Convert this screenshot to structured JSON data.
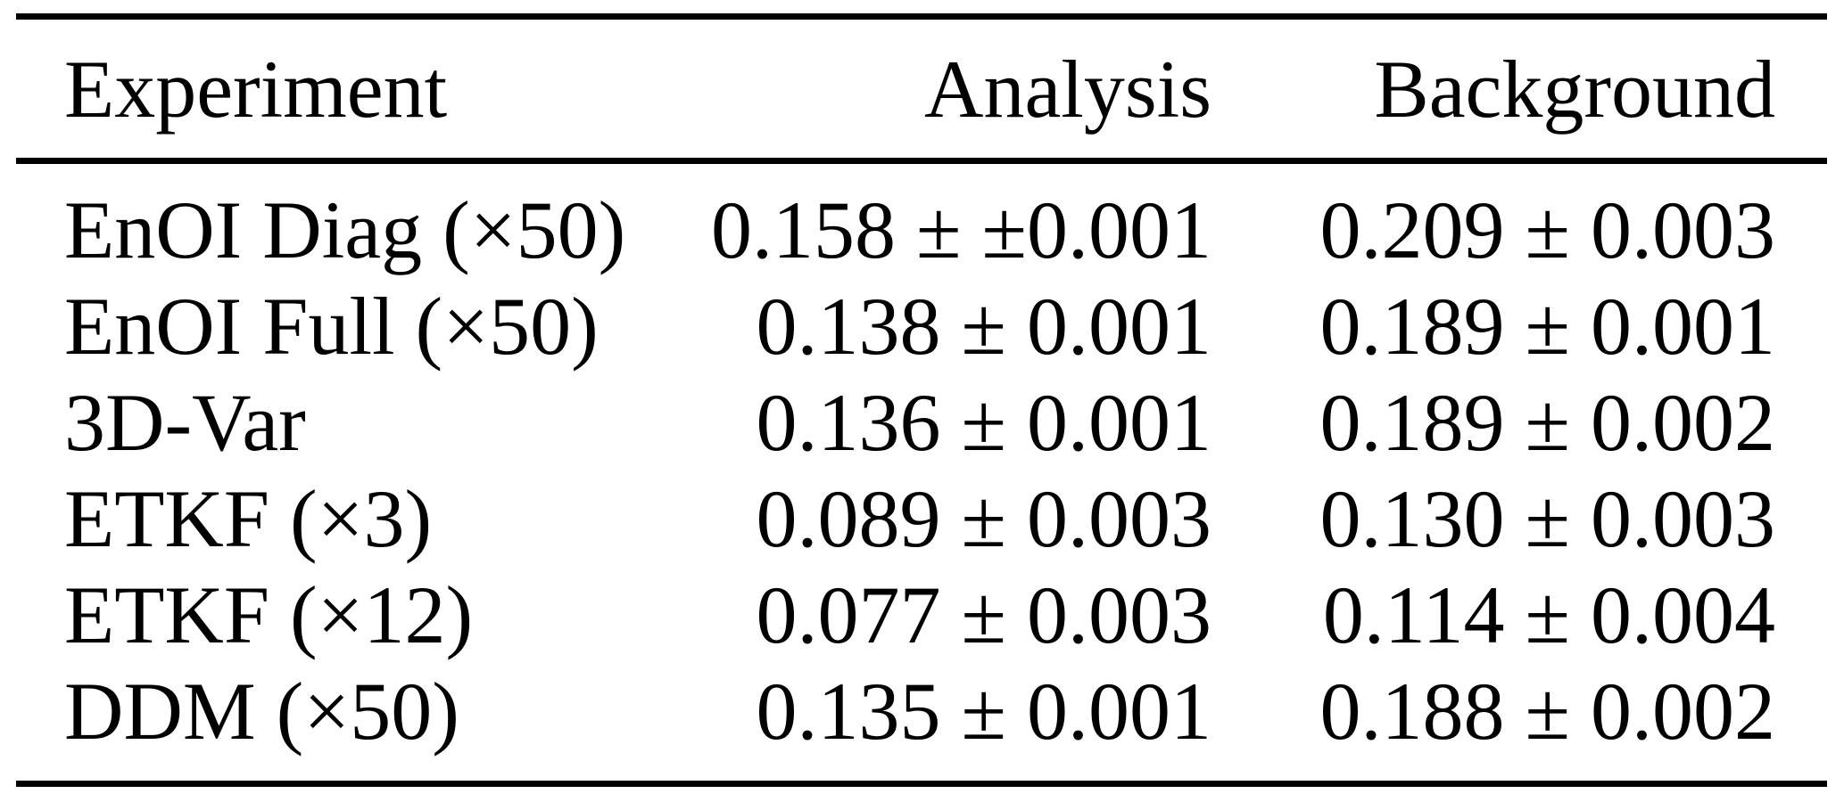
{
  "table": {
    "columns": [
      {
        "key": "experiment",
        "label": "Experiment"
      },
      {
        "key": "analysis",
        "label": "Analysis"
      },
      {
        "key": "background",
        "label": "Background"
      }
    ],
    "rows": [
      {
        "experiment": "EnOI Diag (×50)",
        "analysis": "0.158 ± ±0.001",
        "background": "0.209 ± 0.003"
      },
      {
        "experiment": "EnOI Full (×50)",
        "analysis": "0.138 ± 0.001",
        "background": "0.189 ± 0.001"
      },
      {
        "experiment": "3D-Var",
        "analysis": "0.136 ± 0.001",
        "background": "0.189 ± 0.002"
      },
      {
        "experiment": "ETKF (×3)",
        "analysis": "0.089 ± 0.003",
        "background": "0.130 ± 0.003"
      },
      {
        "experiment": "ETKF (×12)",
        "analysis": "0.077 ± 0.003",
        "background": "0.114 ± 0.004"
      },
      {
        "experiment": "DDM (×50)",
        "analysis": "0.135 ± 0.001",
        "background": "0.188 ± 0.002"
      }
    ]
  },
  "colors": {
    "text": "#000000",
    "background": "#ffffff",
    "rule": "#000000"
  }
}
